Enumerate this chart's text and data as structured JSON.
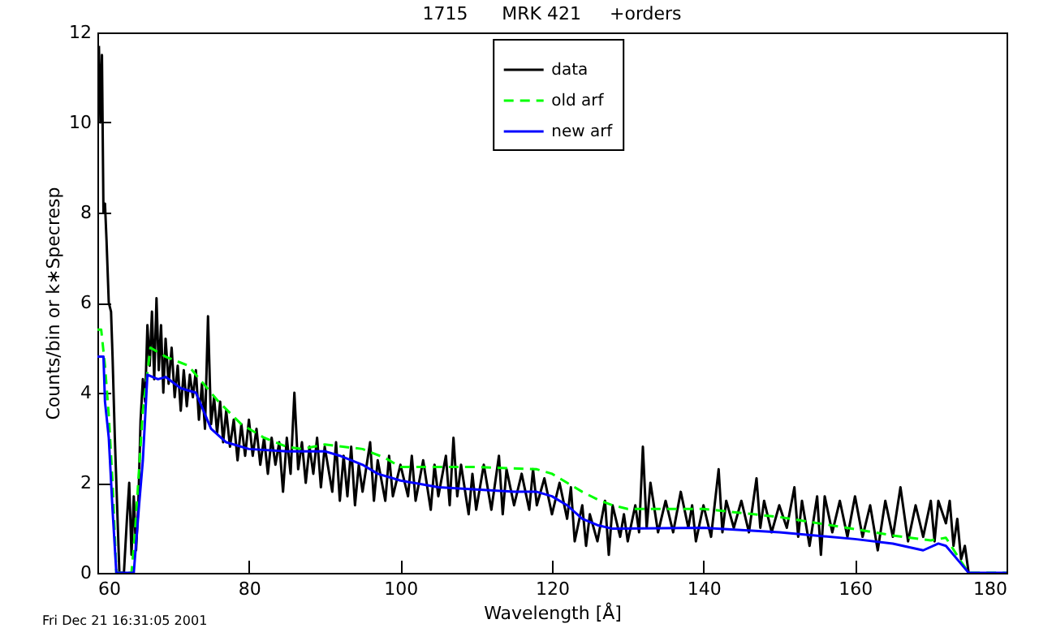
{
  "chart_data": {
    "type": "line",
    "title": "1715      MRK 421     +orders",
    "xlabel": "Wavelength [Å]",
    "ylabel": "Counts/bin or k∗Specresp",
    "annotations": [
      "Fri Dec 21 16:31:05 2001"
    ],
    "xlim": [
      60,
      180
    ],
    "xticks": [
      60,
      80,
      100,
      120,
      140,
      160,
      180
    ],
    "ylim": [
      0,
      12
    ],
    "yticks": [
      0,
      2,
      4,
      6,
      8,
      10,
      12
    ],
    "grid": false,
    "legend": "top",
    "marker": "none",
    "series": [
      {
        "name": "data",
        "color": "#000000",
        "line_style": "solid",
        "x": [
          60.2,
          60.4,
          60.6,
          60.8,
          61,
          61.2,
          61.5,
          61.8,
          62,
          62.3,
          62.6,
          62.9,
          63.5,
          63.9,
          64.2,
          64.5,
          64.8,
          65.1,
          65.4,
          65.7,
          66,
          66.3,
          66.6,
          66.9,
          67.2,
          67.5,
          67.8,
          68.1,
          68.4,
          68.7,
          69,
          69.4,
          69.8,
          70.2,
          70.6,
          71,
          71.4,
          71.8,
          72.2,
          72.6,
          73,
          73.4,
          73.8,
          74.2,
          74.6,
          75,
          75.4,
          75.8,
          76.2,
          76.6,
          77,
          77.5,
          78,
          78.5,
          79,
          79.5,
          80,
          80.5,
          81,
          81.5,
          82,
          82.5,
          83,
          83.5,
          84,
          84.5,
          85,
          85.5,
          86,
          86.5,
          87,
          87.5,
          88,
          88.5,
          89,
          89.5,
          90,
          91,
          91.5,
          92,
          92.5,
          93,
          93.5,
          94,
          94.5,
          95,
          96,
          96.5,
          97,
          98,
          98.5,
          99,
          100,
          101,
          101.5,
          102,
          103,
          104,
          104.5,
          105,
          106,
          106.5,
          107,
          107.5,
          108,
          109,
          109.5,
          110,
          111,
          112,
          113,
          113.5,
          114,
          115,
          116,
          117,
          117.5,
          118,
          119,
          120,
          121,
          122,
          122.5,
          123,
          124,
          124.5,
          125,
          126,
          127,
          127.5,
          128,
          129,
          129.5,
          130,
          131,
          131.5,
          132,
          132.5,
          133,
          134,
          135,
          136,
          137,
          138,
          138.5,
          139,
          140,
          141,
          142,
          142.5,
          143,
          144,
          145,
          146,
          147,
          147.5,
          148,
          149,
          150,
          151,
          152,
          152.5,
          153,
          154,
          155,
          155.5,
          156,
          157,
          158,
          159,
          160,
          161,
          162,
          163,
          164,
          165,
          166,
          167,
          168,
          169,
          170,
          170.5,
          171,
          172,
          172.5,
          173,
          173.5,
          174,
          174.5,
          175
        ],
        "values": [
          11.7,
          10,
          11.5,
          8,
          8.2,
          7.4,
          6,
          5.8,
          4.8,
          3,
          1.5,
          0,
          0,
          1.2,
          2,
          0.4,
          1.7,
          0.5,
          1.5,
          3.4,
          4.3,
          3.8,
          5.5,
          4.6,
          5.8,
          4.3,
          6.1,
          4.5,
          5.5,
          4,
          5.2,
          4.2,
          5,
          3.9,
          4.6,
          3.6,
          4.5,
          3.7,
          4.4,
          3.9,
          4.5,
          3.4,
          4.2,
          3.2,
          5.7,
          3.3,
          3.9,
          3.1,
          3.8,
          2.9,
          3.6,
          2.8,
          3.4,
          2.5,
          3.3,
          2.6,
          3.4,
          2.6,
          3.2,
          2.4,
          3,
          2.2,
          3,
          2.4,
          2.9,
          1.8,
          3,
          2.2,
          4,
          2.3,
          2.9,
          2,
          2.8,
          2.2,
          3,
          1.9,
          2.8,
          1.8,
          2.9,
          1.6,
          2.6,
          1.7,
          2.8,
          1.5,
          2.4,
          1.8,
          2.9,
          1.6,
          2.5,
          1.6,
          2.6,
          1.7,
          2.4,
          1.7,
          2.6,
          1.6,
          2.5,
          1.4,
          2.4,
          1.7,
          2.6,
          1.5,
          3,
          1.7,
          2.4,
          1.3,
          2.2,
          1.4,
          2.4,
          1.4,
          2.6,
          1.3,
          2.3,
          1.5,
          2.2,
          1.4,
          2.3,
          1.5,
          2.1,
          1.3,
          2,
          1.2,
          1.9,
          0.7,
          1.5,
          0.6,
          1.3,
          0.7,
          1.6,
          0.4,
          1.5,
          0.8,
          1.3,
          0.7,
          1.5,
          0.9,
          2.8,
          1,
          2,
          0.9,
          1.6,
          0.9,
          1.8,
          1,
          1.5,
          0.7,
          1.5,
          0.8,
          2.3,
          0.9,
          1.6,
          1,
          1.6,
          0.9,
          2.1,
          1,
          1.6,
          0.9,
          1.5,
          1,
          1.9,
          0.8,
          1.6,
          0.6,
          1.7,
          0.4,
          1.7,
          0.9,
          1.6,
          0.8,
          1.7,
          0.8,
          1.5,
          0.5,
          1.6,
          0.8,
          1.9,
          0.7,
          1.5,
          0.8,
          1.6,
          0.7,
          1.6,
          1.1,
          1.6,
          0.6,
          1.2,
          0.3,
          0.6,
          0
        ]
      },
      {
        "name": "old arf",
        "color": "#00ff00",
        "line_style": "dashed",
        "x": [
          60,
          60.5,
          61,
          61.5,
          62,
          62.5,
          64.5,
          65,
          65.5,
          66,
          67,
          69,
          72,
          74,
          76,
          79,
          82,
          85,
          87,
          90,
          95,
          98,
          100,
          110,
          118,
          120,
          122,
          124,
          126,
          128,
          130,
          140,
          150,
          160,
          165,
          170,
          172,
          174,
          175,
          180
        ],
        "values": [
          5.4,
          5.4,
          4.6,
          3.5,
          2,
          0,
          0,
          1,
          2.3,
          3.6,
          5,
          4.8,
          4.6,
          4.2,
          3.8,
          3.3,
          3,
          2.8,
          2.75,
          2.85,
          2.75,
          2.55,
          2.35,
          2.35,
          2.3,
          2.2,
          2,
          1.8,
          1.63,
          1.5,
          1.42,
          1.42,
          1.24,
          0.97,
          0.83,
          0.72,
          0.78,
          0.25,
          0,
          0
        ]
      },
      {
        "name": "new arf",
        "color": "#0000ff",
        "line_style": "solid",
        "x": [
          60,
          60.8,
          61,
          61.5,
          62,
          62.5,
          64.8,
          65.5,
          66,
          66.6,
          68,
          69,
          71,
          73,
          74,
          75,
          77,
          80,
          85,
          90,
          92,
          95,
          97,
          100,
          105,
          110,
          115,
          118,
          120,
          122,
          124,
          126,
          128,
          140,
          150,
          160,
          165,
          169,
          171,
          172,
          174,
          175,
          180
        ],
        "values": [
          4.8,
          4.8,
          3.8,
          3,
          1.4,
          0,
          0,
          1.5,
          2.5,
          4.4,
          4.3,
          4.35,
          4.1,
          4,
          3.6,
          3.2,
          2.9,
          2.75,
          2.7,
          2.7,
          2.6,
          2.4,
          2.2,
          2.05,
          1.9,
          1.85,
          1.8,
          1.8,
          1.7,
          1.5,
          1.2,
          1.06,
          0.98,
          1,
          0.9,
          0.75,
          0.65,
          0.5,
          0.65,
          0.6,
          0.2,
          0,
          0
        ]
      }
    ]
  }
}
